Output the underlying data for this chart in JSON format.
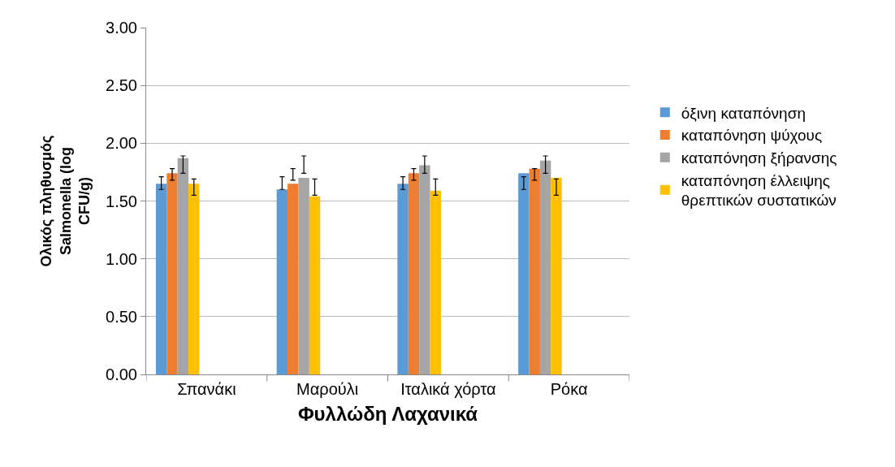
{
  "chart_data": {
    "type": "bar",
    "xlabel": "Φυλλώδη Λαχανικά",
    "ylabel": "Ολικός πληθυσμός Salmonella (log CFU/g)",
    "categories": [
      "Σπανάκι",
      "Μαρούλι",
      "Ιταλικά χόρτα",
      "Ρόκα"
    ],
    "series": [
      {
        "name": "όξινη καταπόνηση",
        "color": "#5b9bd5",
        "values": [
          1.65,
          1.6,
          1.65,
          1.74
        ],
        "errors": [
          [
            1.6,
            1.71
          ],
          [
            1.6,
            1.71
          ],
          [
            1.6,
            1.71
          ],
          [
            1.6,
            1.71
          ]
        ]
      },
      {
        "name": "καταπόνηση ψύχους",
        "color": "#ed7d31",
        "values": [
          1.74,
          1.65,
          1.74,
          1.78
        ],
        "errors": [
          [
            1.68,
            1.78
          ],
          [
            1.68,
            1.78
          ],
          [
            1.68,
            1.78
          ],
          [
            1.68,
            1.78
          ]
        ]
      },
      {
        "name": "καταπόνηση ξήρανσης",
        "color": "#a5a5a5",
        "values": [
          1.87,
          1.7,
          1.81,
          1.85
        ],
        "errors": [
          [
            1.74,
            1.89
          ],
          [
            1.74,
            1.89
          ],
          [
            1.74,
            1.89
          ],
          [
            1.74,
            1.89
          ]
        ]
      },
      {
        "name": "καταπόνηση έλλειψης θρεπτικών συστατικών",
        "color": "#ffc000",
        "values": [
          1.65,
          1.54,
          1.59,
          1.7
        ],
        "errors": [
          [
            1.55,
            1.69
          ],
          [
            1.55,
            1.69
          ],
          [
            1.55,
            1.69
          ],
          [
            1.55,
            1.69
          ]
        ]
      }
    ],
    "ylim": [
      0,
      3
    ],
    "yticks": [
      {
        "value": 0,
        "label": "0.00"
      },
      {
        "value": 0.5,
        "label": "0.50"
      },
      {
        "value": 1,
        "label": "1.00"
      },
      {
        "value": 1.5,
        "label": "1.50"
      },
      {
        "value": 2,
        "label": "2.00"
      },
      {
        "value": 2.5,
        "label": "2.50"
      },
      {
        "value": 3,
        "label": "3.00"
      }
    ],
    "grid": "y",
    "legend": "right"
  }
}
